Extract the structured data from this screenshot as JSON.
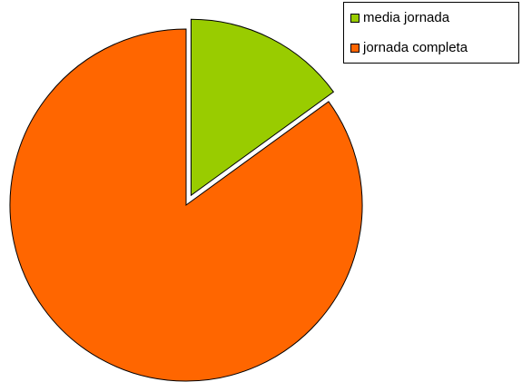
{
  "chart_data": {
    "type": "pie",
    "title": "",
    "legend_position": "top-right",
    "exploded": true,
    "start_angle_deg": 0,
    "direction": "clockwise",
    "slices": [
      {
        "label": "media jornada",
        "value": 15,
        "color": "#99cc00"
      },
      {
        "label": "jornada completa",
        "value": 85,
        "color": "#ff6600"
      }
    ]
  }
}
